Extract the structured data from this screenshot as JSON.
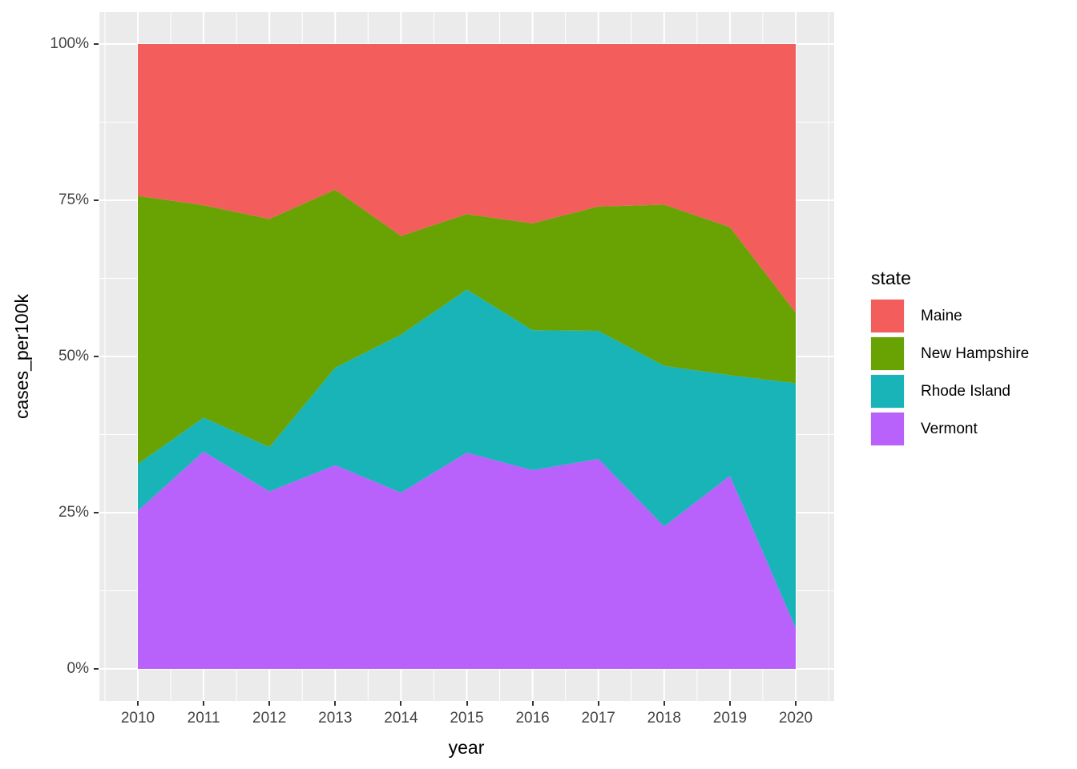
{
  "figure": {
    "background": "#FFFFFF",
    "panel_background": "#EBEBEB",
    "grid_color": "#FFFFFF",
    "tick_mark_color": "#333333",
    "tick_label_color": "#444444",
    "axis_title_color": "#000000"
  },
  "chart_data": {
    "type": "area",
    "stacking": "percent_fill",
    "title": "",
    "xlabel": "year",
    "ylabel": "cases_per100k",
    "x": [
      2010,
      2011,
      2012,
      2013,
      2014,
      2015,
      2016,
      2017,
      2018,
      2019,
      2020
    ],
    "x_ticks": [
      "2010",
      "2011",
      "2012",
      "2013",
      "2014",
      "2015",
      "2016",
      "2017",
      "2018",
      "2019",
      "2020"
    ],
    "y_ticks": [
      "0%",
      "25%",
      "50%",
      "75%",
      "100%"
    ],
    "y_tick_values": [
      0,
      25,
      50,
      75,
      100
    ],
    "ylim": [
      0,
      100
    ],
    "grid": true,
    "legend_position": "right",
    "legend_title": "state",
    "stack_order_bottom_to_top": [
      "Vermont",
      "Rhode Island",
      "New Hampshire",
      "Maine"
    ],
    "series": [
      {
        "name": "Maine",
        "color": "#F35E5C",
        "values": [
          24.3,
          25.8,
          28.0,
          23.3,
          30.7,
          27.2,
          28.7,
          26.0,
          25.7,
          29.3,
          43.0
        ]
      },
      {
        "name": "New Hampshire",
        "color": "#68A303",
        "values": [
          42.9,
          34.0,
          36.5,
          28.5,
          15.8,
          12.1,
          17.1,
          19.9,
          25.8,
          23.7,
          11.3
        ]
      },
      {
        "name": "Rhode Island",
        "color": "#18B4B7",
        "values": [
          7.5,
          5.4,
          7.1,
          15.6,
          25.3,
          26.1,
          22.4,
          20.5,
          25.7,
          16.1,
          39.2
        ]
      },
      {
        "name": "Vermont",
        "color": "#B862FB",
        "values": [
          25.3,
          34.8,
          28.4,
          32.6,
          28.2,
          34.6,
          31.8,
          33.6,
          22.8,
          30.9,
          6.5
        ]
      }
    ]
  }
}
